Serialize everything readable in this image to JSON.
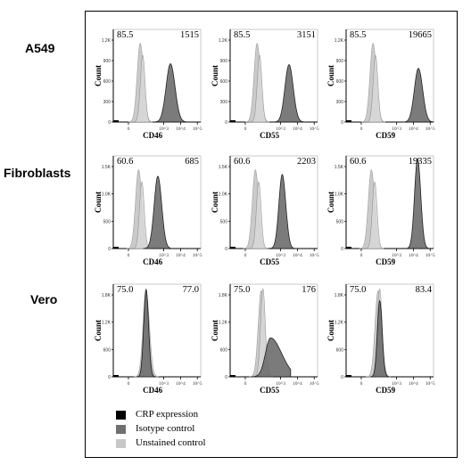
{
  "chart_data": {
    "type": "histogram-grid",
    "rows": [
      {
        "label": "A549",
        "panels": [
          {
            "xlabel": "CD46",
            "gate_pct": "85.5",
            "mfi": "1515",
            "ymax": "1.2K",
            "yticks": [
              "1.2K",
              "900",
              "600",
              "300",
              "0"
            ],
            "unst_peak": 1.6,
            "iso_peak": 1.75,
            "crp_peak": 3.4,
            "crp_width": 0.26,
            "crp_height": 0.63
          },
          {
            "xlabel": "CD55",
            "gate_pct": "85.5",
            "mfi": "3151",
            "ymax": "1.2K",
            "yticks": [
              "1.2K",
              "900",
              "600",
              "300",
              "0"
            ],
            "unst_peak": 1.6,
            "iso_peak": 1.75,
            "crp_peak": 3.5,
            "crp_width": 0.24,
            "crp_height": 0.62
          },
          {
            "xlabel": "CD59",
            "gate_pct": "85.5",
            "mfi": "19665",
            "ymax": "1.2K",
            "yticks": [
              "1.2K",
              "900",
              "600",
              "300",
              "0"
            ],
            "unst_peak": 1.6,
            "iso_peak": 1.75,
            "crp_peak": 4.3,
            "crp_width": 0.24,
            "crp_height": 0.58
          }
        ]
      },
      {
        "label": "Fibroblasts",
        "panels": [
          {
            "xlabel": "CD46",
            "gate_pct": "60.6",
            "mfi": "685",
            "ymax": "1.5K",
            "yticks": [
              "1.5K",
              "1.0K",
              "500",
              "0"
            ],
            "unst_peak": 1.5,
            "iso_peak": 1.7,
            "crp_peak": 2.65,
            "crp_width": 0.22,
            "crp_height": 0.78
          },
          {
            "xlabel": "CD55",
            "gate_pct": "60.6",
            "mfi": "2203",
            "ymax": "1.5K",
            "yticks": [
              "1.5K",
              "1.0K",
              "500",
              "0"
            ],
            "unst_peak": 1.5,
            "iso_peak": 1.7,
            "crp_peak": 3.1,
            "crp_width": 0.2,
            "crp_height": 0.8
          },
          {
            "xlabel": "CD59",
            "gate_pct": "60.6",
            "mfi": "19335",
            "ymax": "1.5K",
            "yticks": [
              "1.5K",
              "1.0K",
              "500",
              "0"
            ],
            "unst_peak": 1.5,
            "iso_peak": 1.7,
            "crp_peak": 4.25,
            "crp_width": 0.18,
            "crp_height": 0.97
          }
        ]
      },
      {
        "label": "Vero",
        "panels": [
          {
            "xlabel": "CD46",
            "gate_pct": "75.0",
            "mfi": "77.0",
            "ymax": "1.8K",
            "yticks": [
              "1.8K",
              "1.2K",
              "600",
              "0"
            ],
            "unst_peak": 1.95,
            "iso_peak": 1.95,
            "crp_peak": 1.95,
            "crp_width": 0.14,
            "crp_height": 0.94
          },
          {
            "xlabel": "CD55",
            "gate_pct": "75.0",
            "mfi": "176",
            "ymax": "1.8K",
            "yticks": [
              "1.8K",
              "1.2K",
              "600",
              "0"
            ],
            "unst_peak": 1.85,
            "iso_peak": 1.95,
            "crp_peak": 2.4,
            "crp_width": 0.3,
            "crp_height": 0.42
          },
          {
            "xlabel": "CD59",
            "gate_pct": "75.0",
            "mfi": "83.4",
            "ymax": "1.8K",
            "yticks": [
              "1.8K",
              "1.2K",
              "600",
              "0"
            ],
            "unst_peak": 1.9,
            "iso_peak": 2.0,
            "crp_peak": 2.0,
            "crp_width": 0.14,
            "crp_height": 0.82
          }
        ]
      }
    ],
    "ylabel": "Count",
    "xticks": [
      "0",
      "10^3",
      "10^4",
      "10^5"
    ],
    "legend": [
      {
        "label": "CRP expression",
        "color": "#000000"
      },
      {
        "label": "Isotype control",
        "color": "#707070"
      },
      {
        "label": "Unstained control",
        "color": "#c8c8c8"
      }
    ]
  }
}
